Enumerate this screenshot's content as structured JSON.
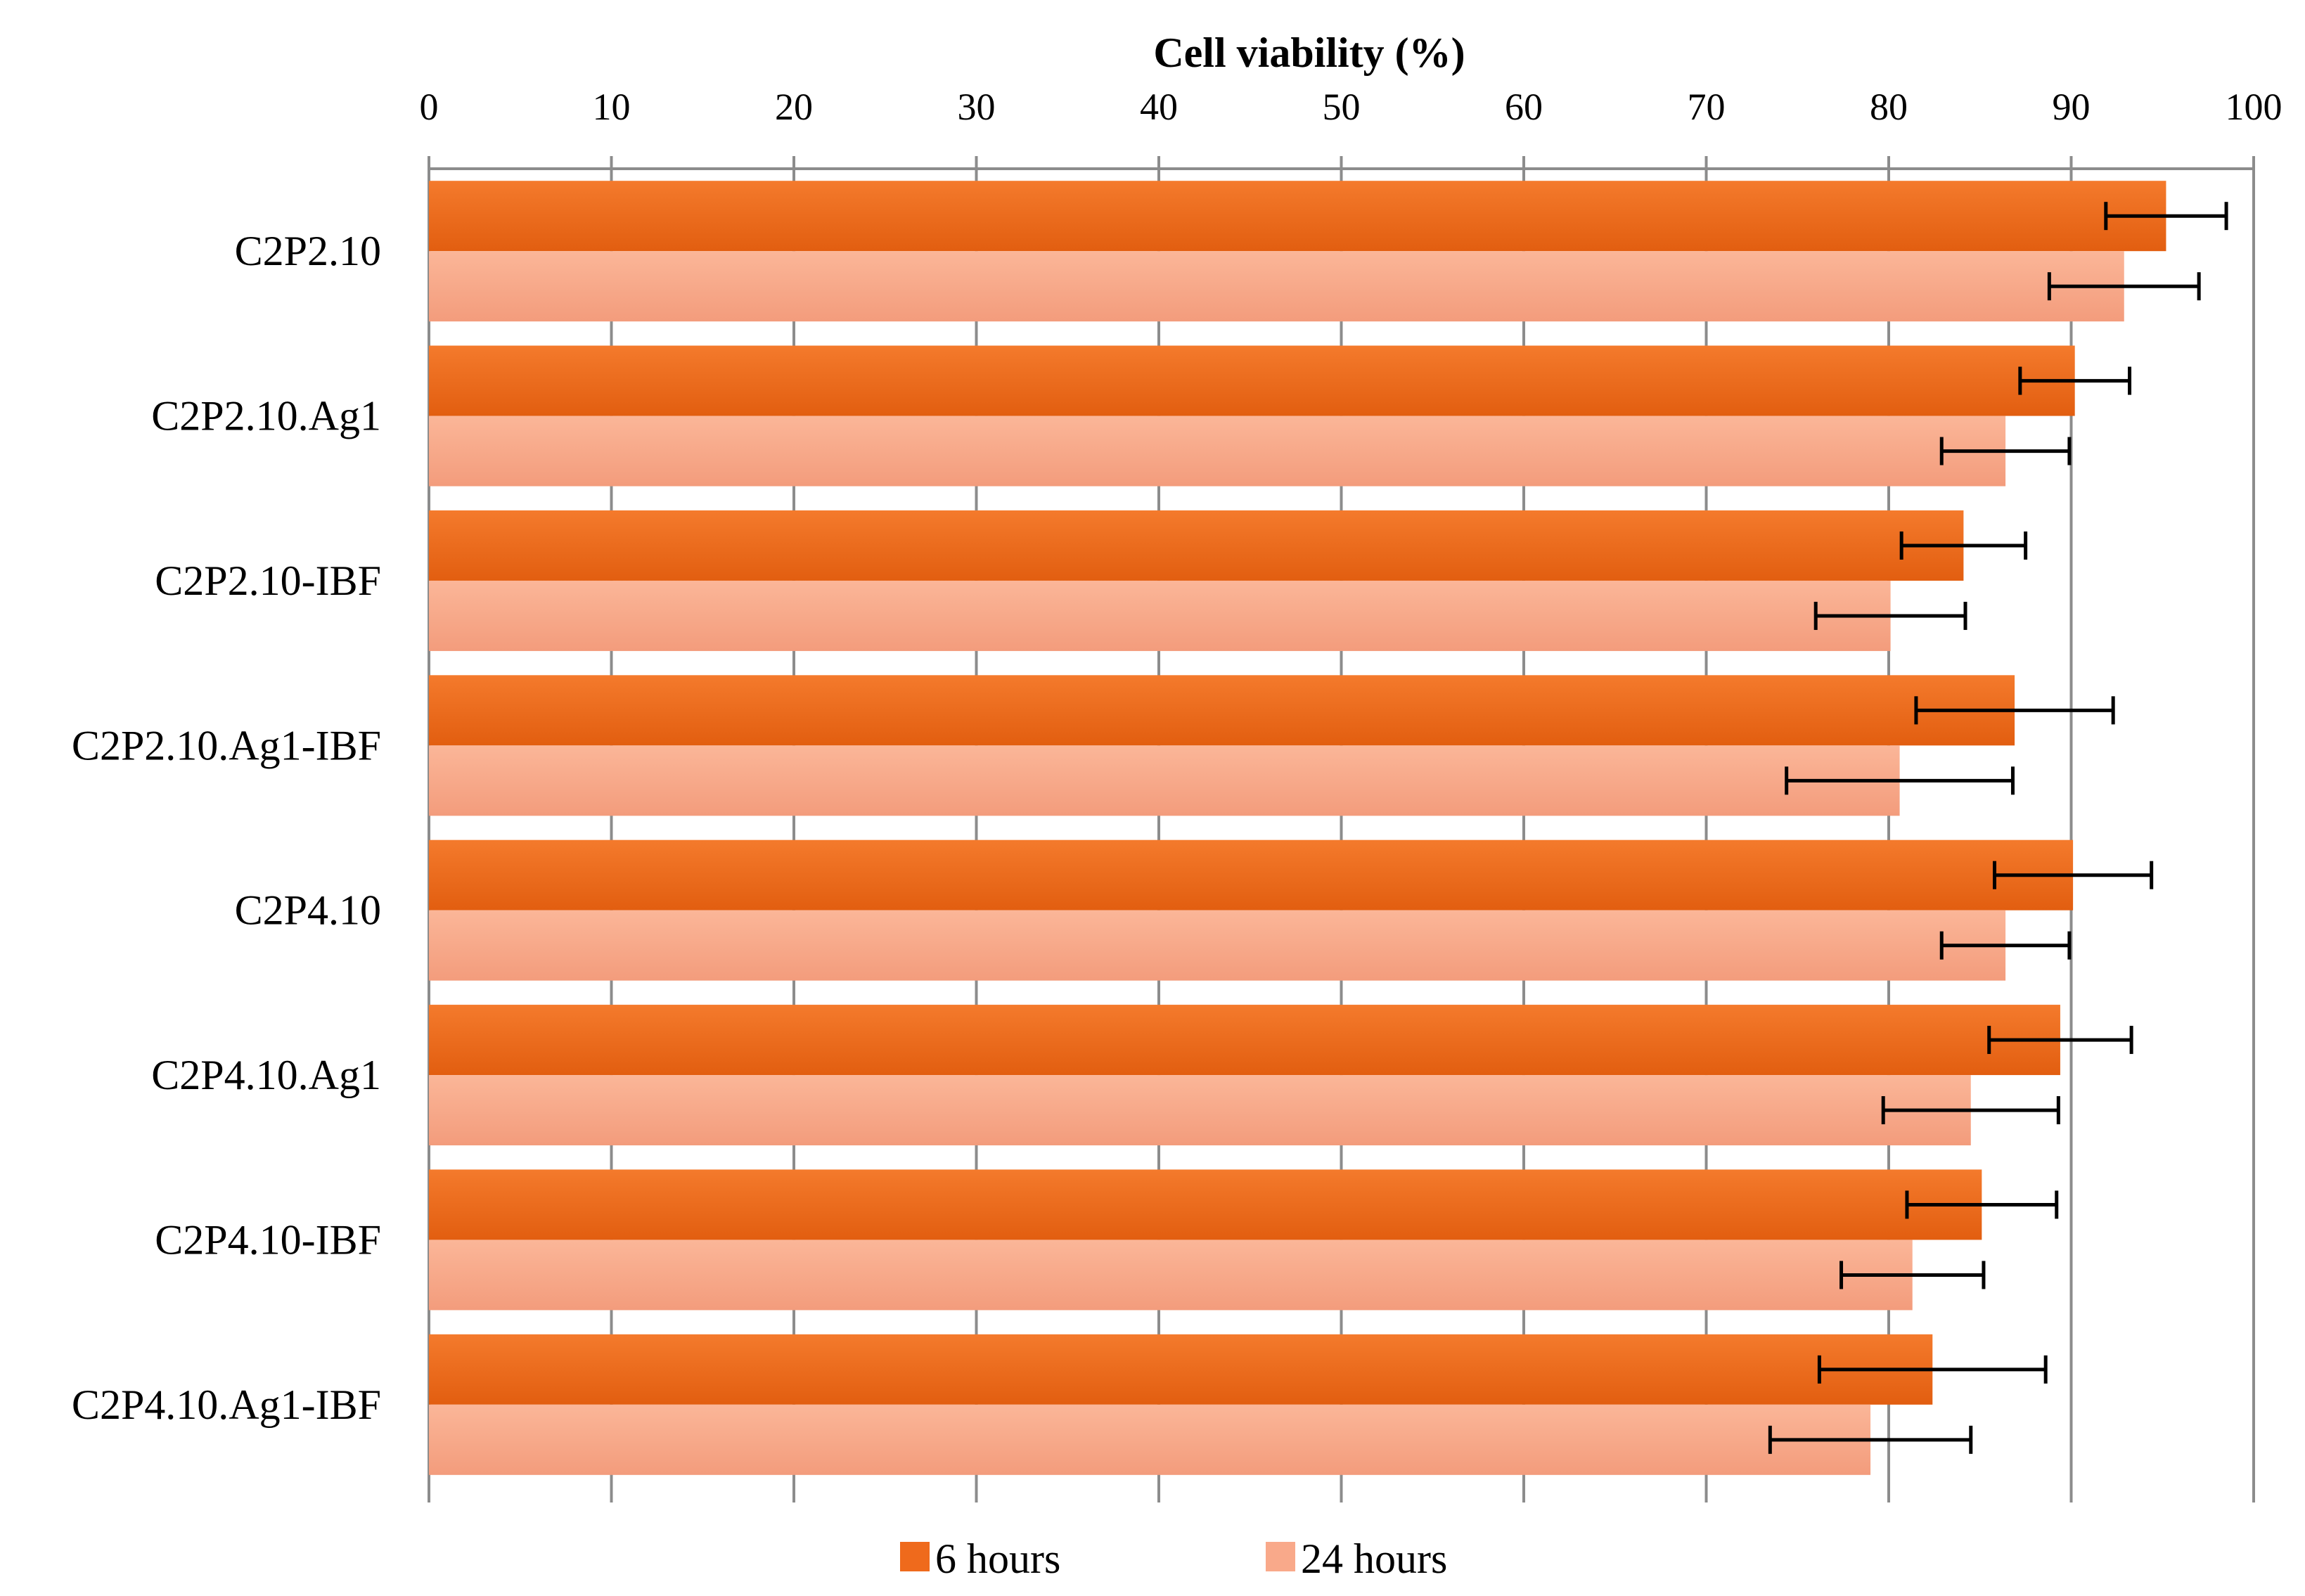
{
  "chart_data": {
    "type": "bar",
    "orientation": "horizontal",
    "title": "Cell viability (%)",
    "xlabel": "Cell viability (%)",
    "ylabel": "",
    "xlim": [
      0,
      100
    ],
    "ticks": [
      0,
      10,
      20,
      30,
      40,
      50,
      60,
      70,
      80,
      90,
      100
    ],
    "grid": true,
    "legend_position": "bottom",
    "categories": [
      "C2P2.10",
      "C2P2.10.Ag1",
      "C2P2.10-IBF",
      "C2P2.10.Ag1-IBF",
      "C2P4.10",
      "C2P4.10.Ag1",
      "C2P4.10-IBF",
      "C2P4.10.Ag1-IBF"
    ],
    "series": [
      {
        "name": "6 hours",
        "color": "#ef6a1c",
        "values": [
          95.2,
          90.2,
          84.1,
          86.9,
          90.1,
          89.4,
          85.1,
          82.4
        ],
        "errors": [
          3.3,
          3.0,
          3.4,
          5.4,
          4.3,
          3.9,
          4.1,
          6.2
        ]
      },
      {
        "name": "24 hours",
        "color": "#f9a98a",
        "values": [
          92.9,
          86.4,
          80.1,
          80.6,
          86.4,
          84.5,
          81.3,
          79.0
        ],
        "errors": [
          4.1,
          3.5,
          4.1,
          6.2,
          3.5,
          4.8,
          3.9,
          5.5
        ]
      }
    ]
  }
}
